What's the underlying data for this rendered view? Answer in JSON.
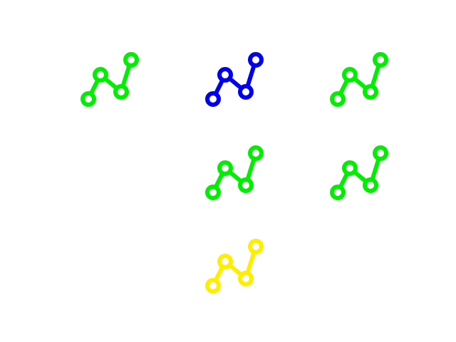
{
  "board": {
    "background": "#ffffff",
    "icon": "line-chart-icon",
    "tiles": [
      {
        "row": 1,
        "col": 1,
        "color": "#00ee00",
        "color_name": "green"
      },
      {
        "row": 1,
        "col": 2,
        "color": "#0000ee",
        "color_name": "blue"
      },
      {
        "row": 1,
        "col": 3,
        "color": "#00ee00",
        "color_name": "green"
      },
      {
        "row": 2,
        "col": 2,
        "color": "#00ee00",
        "color_name": "green"
      },
      {
        "row": 2,
        "col": 3,
        "color": "#00ee00",
        "color_name": "green"
      },
      {
        "row": 3,
        "col": 2,
        "color": "#ffee00",
        "color_name": "yellow"
      }
    ]
  }
}
